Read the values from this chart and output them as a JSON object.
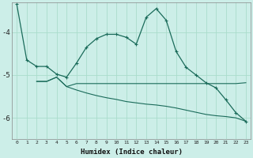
{
  "xlabel": "Humidex (Indice chaleur)",
  "bg_color": "#cceee8",
  "line_color": "#1a6b5a",
  "grid_color": "#aaddcc",
  "x_ticks": [
    0,
    1,
    2,
    3,
    4,
    5,
    6,
    7,
    8,
    9,
    10,
    11,
    12,
    13,
    14,
    15,
    16,
    17,
    18,
    19,
    20,
    21,
    22,
    23
  ],
  "ylim": [
    -6.5,
    -3.3
  ],
  "ytop_extra": -3.3,
  "y_ticks": [
    -6,
    -5,
    -4
  ],
  "series1_x": [
    0,
    1,
    2,
    3,
    4,
    5,
    6,
    7,
    8,
    9,
    10,
    11,
    12,
    13,
    14,
    15,
    16,
    17,
    18,
    19,
    20,
    21,
    22,
    23
  ],
  "series1_y": [
    -3.35,
    -4.65,
    -4.8,
    -4.8,
    -4.98,
    -5.05,
    -4.72,
    -4.35,
    -4.15,
    -4.05,
    -4.05,
    -4.12,
    -4.28,
    -3.65,
    -3.45,
    -3.72,
    -4.45,
    -4.82,
    -5.0,
    -5.18,
    -5.3,
    -5.58,
    -5.88,
    -6.08
  ],
  "series2_x": [
    2,
    3,
    4,
    5,
    6,
    7,
    8,
    9,
    10,
    11,
    12,
    13,
    14,
    15,
    16,
    17,
    18,
    19,
    20,
    21,
    22,
    23
  ],
  "series2_y": [
    -5.15,
    -5.15,
    -5.05,
    -5.27,
    -5.2,
    -5.2,
    -5.2,
    -5.2,
    -5.2,
    -5.2,
    -5.2,
    -5.2,
    -5.2,
    -5.2,
    -5.2,
    -5.2,
    -5.2,
    -5.2,
    -5.2,
    -5.2,
    -5.2,
    -5.18
  ],
  "series3_x": [
    2,
    3,
    4,
    5,
    6,
    7,
    8,
    9,
    10,
    11,
    12,
    13,
    14,
    15,
    16,
    17,
    18,
    19,
    20,
    21,
    22,
    23
  ],
  "series3_y": [
    -5.15,
    -5.15,
    -5.05,
    -5.27,
    -5.35,
    -5.42,
    -5.48,
    -5.53,
    -5.57,
    -5.62,
    -5.65,
    -5.68,
    -5.7,
    -5.73,
    -5.77,
    -5.82,
    -5.87,
    -5.92,
    -5.95,
    -5.97,
    -6.0,
    -6.08
  ],
  "figsize": [
    3.2,
    2.0
  ],
  "dpi": 100
}
